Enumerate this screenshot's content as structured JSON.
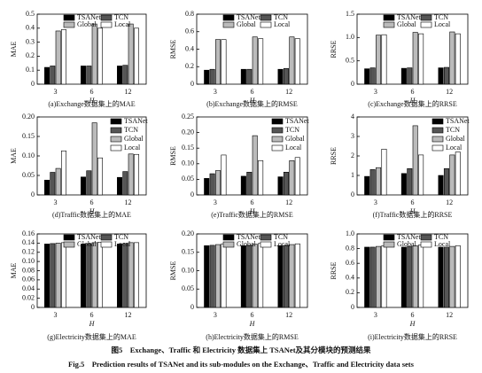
{
  "chart_data": [
    {
      "type": "bar",
      "ylabel": "MAE",
      "xlabel": "H",
      "caption": "(a)Exchange数据集上的MAE",
      "legend": "top",
      "categories": [
        "3",
        "6",
        "12"
      ],
      "ylim": [
        0,
        0.5
      ],
      "yticks": [
        0,
        0.1,
        0.2,
        0.3,
        0.4,
        0.5
      ],
      "series": [
        {
          "name": "TSANet",
          "color": "#000000",
          "values": [
            0.12,
            0.13,
            0.13
          ]
        },
        {
          "name": "TCN",
          "color": "#555555",
          "values": [
            0.13,
            0.13,
            0.135
          ]
        },
        {
          "name": "Global",
          "color": "#bbbbbb",
          "values": [
            0.38,
            0.43,
            0.43
          ]
        },
        {
          "name": "Local",
          "color": "#ffffff",
          "values": [
            0.39,
            0.4,
            0.4
          ]
        }
      ]
    },
    {
      "type": "bar",
      "ylabel": "RMSE",
      "xlabel": "H",
      "caption": "(b)Exchange数据集上的RMSE",
      "legend": "top",
      "categories": [
        "3",
        "6",
        "12"
      ],
      "ylim": [
        0,
        0.8
      ],
      "yticks": [
        0,
        0.2,
        0.4,
        0.6,
        0.8
      ],
      "series": [
        {
          "name": "TSANet",
          "color": "#000000",
          "values": [
            0.16,
            0.17,
            0.17
          ]
        },
        {
          "name": "TCN",
          "color": "#555555",
          "values": [
            0.17,
            0.17,
            0.18
          ]
        },
        {
          "name": "Global",
          "color": "#bbbbbb",
          "values": [
            0.51,
            0.54,
            0.54
          ]
        },
        {
          "name": "Local",
          "color": "#ffffff",
          "values": [
            0.51,
            0.52,
            0.52
          ]
        }
      ]
    },
    {
      "type": "bar",
      "ylabel": "RRSE",
      "xlabel": "H",
      "caption": "(c)Exchange数据集上的RRSE",
      "legend": "top",
      "categories": [
        "3",
        "6",
        "12"
      ],
      "ylim": [
        0,
        1.5
      ],
      "yticks": [
        0,
        0.5,
        {
          "value": 1,
          "label": "1.0"
        },
        1.5
      ],
      "series": [
        {
          "name": "TSANet",
          "color": "#000000",
          "values": [
            0.33,
            0.34,
            0.35
          ]
        },
        {
          "name": "TCN",
          "color": "#555555",
          "values": [
            0.35,
            0.35,
            0.36
          ]
        },
        {
          "name": "Global",
          "color": "#bbbbbb",
          "values": [
            1.05,
            1.11,
            1.12
          ]
        },
        {
          "name": "Local",
          "color": "#ffffff",
          "values": [
            1.06,
            1.08,
            1.08
          ]
        }
      ]
    },
    {
      "type": "bar",
      "ylabel": "MAE",
      "xlabel": "H",
      "caption": "(d)Traffic数据集上的MAE",
      "legend": "right",
      "categories": [
        "3",
        "6",
        "12"
      ],
      "ylim": [
        0,
        0.2
      ],
      "yticks": [
        0,
        0.05,
        {
          "value": 0.1,
          "label": "0.10"
        },
        0.15,
        {
          "value": 0.2,
          "label": "0.20"
        }
      ],
      "series": [
        {
          "name": "TSANet",
          "color": "#000000",
          "values": [
            0.038,
            0.046,
            0.045
          ]
        },
        {
          "name": "TCN",
          "color": "#555555",
          "values": [
            0.058,
            0.062,
            0.06
          ]
        },
        {
          "name": "Global",
          "color": "#bbbbbb",
          "values": [
            0.068,
            0.185,
            0.105
          ]
        },
        {
          "name": "Local",
          "color": "#ffffff",
          "values": [
            0.113,
            0.095,
            0.104
          ]
        }
      ]
    },
    {
      "type": "bar",
      "ylabel": "RMSE",
      "xlabel": "H",
      "caption": "(e)Traffic数据集上的RMSE",
      "legend": "right",
      "categories": [
        "3",
        "6",
        "12"
      ],
      "ylim": [
        0,
        0.25
      ],
      "yticks": [
        0,
        0.05,
        {
          "value": 0.1,
          "label": "0.10"
        },
        0.15,
        {
          "value": 0.2,
          "label": "0.20"
        },
        0.25
      ],
      "series": [
        {
          "name": "TSANet",
          "color": "#000000",
          "values": [
            0.053,
            0.06,
            0.058
          ]
        },
        {
          "name": "TCN",
          "color": "#555555",
          "values": [
            0.068,
            0.073,
            0.073
          ]
        },
        {
          "name": "Global",
          "color": "#bbbbbb",
          "values": [
            0.078,
            0.19,
            0.11
          ]
        },
        {
          "name": "Local",
          "color": "#ffffff",
          "values": [
            0.128,
            0.11,
            0.12
          ]
        }
      ]
    },
    {
      "type": "bar",
      "ylabel": "RRSE",
      "xlabel": "H",
      "caption": "(f)Traffic数据集上的RRSE",
      "legend": "right",
      "categories": [
        "3",
        "6",
        "12"
      ],
      "ylim": [
        0,
        4
      ],
      "yticks": [
        0,
        1,
        2,
        3,
        4
      ],
      "series": [
        {
          "name": "TSANet",
          "color": "#000000",
          "values": [
            0.95,
            1.1,
            1.0
          ]
        },
        {
          "name": "TCN",
          "color": "#555555",
          "values": [
            1.3,
            1.35,
            1.35
          ]
        },
        {
          "name": "Global",
          "color": "#bbbbbb",
          "values": [
            1.4,
            3.55,
            2.05
          ]
        },
        {
          "name": "Local",
          "color": "#ffffff",
          "values": [
            2.35,
            2.05,
            2.2
          ]
        }
      ]
    },
    {
      "type": "bar",
      "ylabel": "MAE",
      "xlabel": "H",
      "caption": "(g)Electricity数据集上的MAE",
      "legend": "top",
      "categories": [
        "3",
        "6",
        "12"
      ],
      "ylim": [
        0,
        0.16
      ],
      "yticks": [
        0,
        0.02,
        0.04,
        0.06,
        0.08,
        {
          "value": 0.1,
          "label": "0.10"
        },
        0.12,
        0.14,
        0.16
      ],
      "series": [
        {
          "name": "TSANet",
          "color": "#000000",
          "values": [
            0.138,
            0.138,
            0.138
          ]
        },
        {
          "name": "TCN",
          "color": "#555555",
          "values": [
            0.139,
            0.139,
            0.139
          ]
        },
        {
          "name": "Global",
          "color": "#bbbbbb",
          "values": [
            0.14,
            0.141,
            0.141
          ]
        },
        {
          "name": "Local",
          "color": "#ffffff",
          "values": [
            0.141,
            0.142,
            0.141
          ]
        }
      ]
    },
    {
      "type": "bar",
      "ylabel": "RMSE",
      "xlabel": "H",
      "caption": "(h)Electricity数据集上的RMSE",
      "legend": "top",
      "categories": [
        "3",
        "6",
        "12"
      ],
      "ylim": [
        0,
        0.2
      ],
      "yticks": [
        0,
        0.05,
        {
          "value": 0.1,
          "label": "0.10"
        },
        0.15,
        {
          "value": 0.2,
          "label": "0.20"
        }
      ],
      "series": [
        {
          "name": "TSANet",
          "color": "#000000",
          "values": [
            0.168,
            0.168,
            0.168
          ]
        },
        {
          "name": "TCN",
          "color": "#555555",
          "values": [
            0.169,
            0.169,
            0.169
          ]
        },
        {
          "name": "Global",
          "color": "#bbbbbb",
          "values": [
            0.171,
            0.172,
            0.171
          ]
        },
        {
          "name": "Local",
          "color": "#ffffff",
          "values": [
            0.173,
            0.174,
            0.173
          ]
        }
      ]
    },
    {
      "type": "bar",
      "ylabel": "RRSE",
      "xlabel": "H",
      "caption": "(i)Electricity数据集上的RRSE",
      "legend": "top",
      "categories": [
        "3",
        "6",
        "12"
      ],
      "ylim": [
        0,
        1
      ],
      "yticks": [
        0,
        0.2,
        0.4,
        0.6,
        0.8,
        {
          "value": 1,
          "label": "1.0"
        }
      ],
      "series": [
        {
          "name": "TSANet",
          "color": "#000000",
          "values": [
            0.82,
            0.82,
            0.82
          ]
        },
        {
          "name": "TCN",
          "color": "#555555",
          "values": [
            0.82,
            0.83,
            0.82
          ]
        },
        {
          "name": "Global",
          "color": "#bbbbbb",
          "values": [
            0.83,
            0.84,
            0.83
          ]
        },
        {
          "name": "Local",
          "color": "#ffffff",
          "values": [
            0.84,
            0.85,
            0.84
          ]
        }
      ]
    }
  ],
  "figure_caption": {
    "chinese": "图5　Exchange、Traffic 和 Electricity 数据集上 TSANet及其分模块的预测结果",
    "english": "Fig.5　Prediction results of TSANet and its sub-modules on the Exchange、Traffic and Electricity data sets"
  }
}
